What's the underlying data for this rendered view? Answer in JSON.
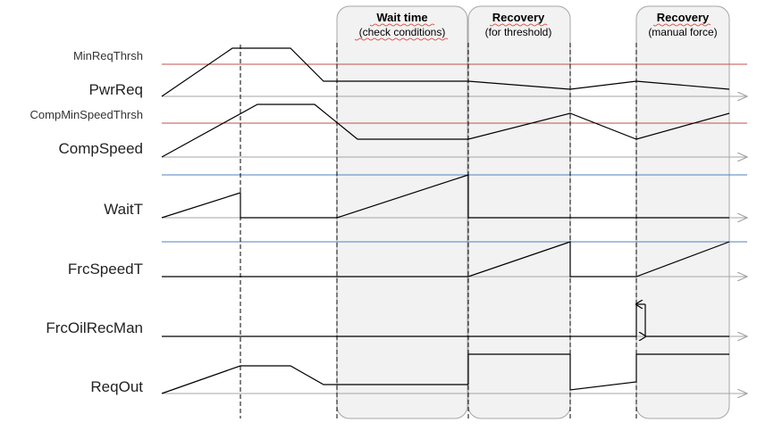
{
  "colors": {
    "threshold_line": "#c0504d",
    "baseline_line": "#4f81bd",
    "signal": "#000000",
    "axis_arrow": "#a6a6a6",
    "phase_fill": "#f2f2f2",
    "phase_border": "#a6a6a6",
    "marker_line": "#000000"
  },
  "phases": [
    {
      "title": "Wait time",
      "subtitle": "(check conditions)"
    },
    {
      "title": "Recovery",
      "subtitle": "(for threshold)"
    },
    {
      "title": "Recovery",
      "subtitle": "(manual force)"
    }
  ],
  "labels": {
    "min_req_thrsh": "MinReqThrsh",
    "pwr_req": "PwrReq",
    "comp_min_speed_thrsh": "CompMinSpeedThrsh",
    "comp_speed": "CompSpeed",
    "wait_t": "WaitT",
    "frc_speed_t": "FrcSpeedT",
    "frc_oil_rec_man": "FrcOilRecMan",
    "req_out": "ReqOut"
  }
}
